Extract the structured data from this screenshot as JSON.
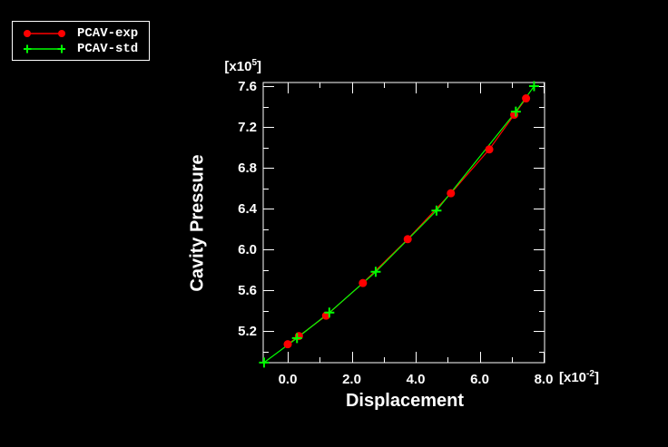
{
  "legend": {
    "items": [
      {
        "label": "PCAV-exp",
        "color": "#ff0000",
        "marker": "circle"
      },
      {
        "label": "PCAV-std",
        "color": "#00ff00",
        "marker": "plus"
      }
    ]
  },
  "chart_data": {
    "type": "line",
    "title": "",
    "xlabel": "Displacement",
    "ylabel": "Cavity Pressure",
    "x_multiplier": {
      "prefix": "[x10",
      "exponent": "-2",
      "suffix": "]"
    },
    "y_multiplier": {
      "prefix": "[x10",
      "exponent": "5",
      "suffix": "]"
    },
    "background": "#000000",
    "axes_color": "#ffffff",
    "grid": "off",
    "legend_position": "top-left",
    "x_axis": {
      "range": [
        -0.766,
        8.028
      ],
      "major_ticks": [
        0,
        2,
        4,
        6,
        8
      ],
      "major_labels": [
        "0.0",
        "2.0",
        "4.0",
        "6.0",
        "8.0"
      ],
      "minor_ticks": [
        1,
        3,
        5,
        7
      ]
    },
    "y_axis": {
      "range": [
        4.889,
        7.636
      ],
      "major_ticks": [
        5.2,
        5.6,
        6.0,
        6.4,
        6.8,
        7.2,
        7.6
      ],
      "major_labels": [
        "5.2",
        "5.6",
        "6.0",
        "6.4",
        "6.8",
        "7.2",
        "7.6"
      ],
      "minor_ticks": [
        5.0,
        5.4,
        5.8,
        6.2,
        6.6,
        7.0,
        7.4
      ]
    },
    "series": [
      {
        "name": "PCAV-exp",
        "color": "#ff0000",
        "marker": "circle",
        "points": [
          [
            0.0,
            5.07
          ],
          [
            0.35,
            5.15
          ],
          [
            1.2,
            5.35
          ],
          [
            2.35,
            5.67
          ],
          [
            3.75,
            6.1
          ],
          [
            5.1,
            6.55
          ],
          [
            6.3,
            6.98
          ],
          [
            7.08,
            7.32
          ],
          [
            7.45,
            7.48
          ]
        ]
      },
      {
        "name": "PCAV-std",
        "color": "#00ff00",
        "marker": "plus",
        "points": [
          [
            -0.74,
            4.89
          ],
          [
            0.29,
            5.13
          ],
          [
            1.3,
            5.38
          ],
          [
            2.75,
            5.78
          ],
          [
            4.65,
            6.38
          ],
          [
            7.13,
            7.35
          ],
          [
            7.7,
            7.6
          ]
        ]
      }
    ]
  }
}
